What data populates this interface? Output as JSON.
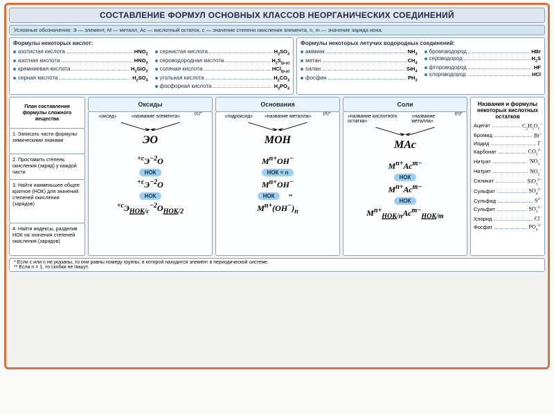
{
  "title": "СОСТАВЛЕНИЕ ФОРМУЛ ОСНОВНЫХ КЛАССОВ НЕОРГАНИЧЕСКИХ СОЕДИНЕНИЙ",
  "legend": "Условные обозначения: Э — элемент, М — металл, Ас — кислотный остаток, с — значение степени окисления элемента, n, m — значение заряда иона.",
  "acids_title": "Формулы некоторых кислот:",
  "acids_col1": [
    {
      "n": "азотистая кислота",
      "f": "HNO<sub>2</sub>"
    },
    {
      "n": "азотная кислота",
      "f": "HNO<sub>3</sub>"
    },
    {
      "n": "кремниевая кислота",
      "f": "H<sub>2</sub>SiO<sub>3</sub>"
    },
    {
      "n": "серная кислота",
      "f": "H<sub>2</sub>SO<sub>4</sub>"
    }
  ],
  "acids_col2": [
    {
      "n": "сернистая кислота",
      "f": "H<sub>2</sub>SO<sub>3</sub>"
    },
    {
      "n": "сероводородная кислота",
      "f": "H<sub>2</sub>S<sub>(р-р)</sub>"
    },
    {
      "n": "соляная кислота",
      "f": "HCl<sub>(р-р)</sub>"
    },
    {
      "n": "угольная кислота",
      "f": "H<sub>2</sub>CO<sub>3</sub>"
    },
    {
      "n": "фосфорная кислота",
      "f": "H<sub>3</sub>PO<sub>4</sub>"
    }
  ],
  "volatile_title": "Формулы некоторых летучих водородных соединений:",
  "volatile_col1": [
    {
      "n": "аммиак",
      "f": "NH<sub>3</sub>"
    },
    {
      "n": "метан",
      "f": "CH<sub>4</sub>"
    },
    {
      "n": "силан",
      "f": "SiH<sub>4</sub>"
    },
    {
      "n": "фосфин",
      "f": "PH<sub>3</sub>"
    }
  ],
  "volatile_col2": [
    {
      "n": "бромоводород",
      "f": "HBr"
    },
    {
      "n": "сероводород",
      "f": "H<sub>2</sub>S"
    },
    {
      "n": "фтороводород",
      "f": "HF"
    },
    {
      "n": "хлороводород",
      "f": "HCl"
    }
  ],
  "plan_header": "План составления формулы сложного вещества",
  "steps": [
    "1. Записать части формулы химическими знаками",
    "2. Проставить степень окисления (заряд) у каждой части",
    "3. Найти наименьшее общее кратное (НОК) для значений степеней окисления (зарядов)",
    "4. Найти индексы, разделив НОК на значения степеней окисления (зарядов)"
  ],
  "class_headers": [
    "Оксиды",
    "Основания",
    "Соли"
  ],
  "pair_oxide_a": "«оксид»",
  "pair_oxide_b": "«название элемента»",
  "pair_base_a": "«гидроксид»",
  "pair_base_b": "«название металла»",
  "pair_salt_a": "«название кислотного остатка»",
  "pair_salt_b": "«название металла»",
  "corner_c": "(с)*",
  "corner_n": "(n)*",
  "nok": "НОК",
  "nok_eq_n": "НОК = n",
  "star2": "**",
  "residues_title": "Названия и формулы некоторых кислотных остатков",
  "residues": [
    {
      "n": "Ацетат",
      "f": "C<sub>2</sub>H<sub>3</sub>O<sub>2</sub><sup>–</sup>"
    },
    {
      "n": "Бромид",
      "f": "Br<sup>–</sup>"
    },
    {
      "n": "Иодид",
      "f": "I<sup>–</sup>"
    },
    {
      "n": "Карбонат",
      "f": "CO<sub>3</sub><sup>2–</sup>"
    },
    {
      "n": "Нитрат",
      "f": "NO<sub>3</sub><sup>–</sup>"
    },
    {
      "n": "Нитрит",
      "f": "NO<sub>2</sub><sup>–</sup>"
    },
    {
      "n": "Силикат",
      "f": "SiO<sub>3</sub><sup>2–</sup>"
    },
    {
      "n": "Сульфат",
      "f": "SO<sub>4</sub><sup>2–</sup>"
    },
    {
      "n": "Сульфид",
      "f": "S<sup>2–</sup>"
    },
    {
      "n": "Сульфит",
      "f": "SO<sub>3</sub><sup>2–</sup>"
    },
    {
      "n": "Хлорид",
      "f": "Cl<sup>–</sup>"
    },
    {
      "n": "Фосфат",
      "f": "PO<sub>4</sub><sup>3–</sup>"
    }
  ],
  "footnote1": "* Если с или n не указаны, то они равны номеру группы, в которой находится элемент в периодической системе.",
  "footnote2": "** Если n = 1, то скобки не пишут.",
  "colors": {
    "border": "#d8733a",
    "line": "#8aa0bc",
    "head": "#e0e6ee",
    "legend": "#cfe6ef",
    "nok": "#9dd0f0"
  }
}
